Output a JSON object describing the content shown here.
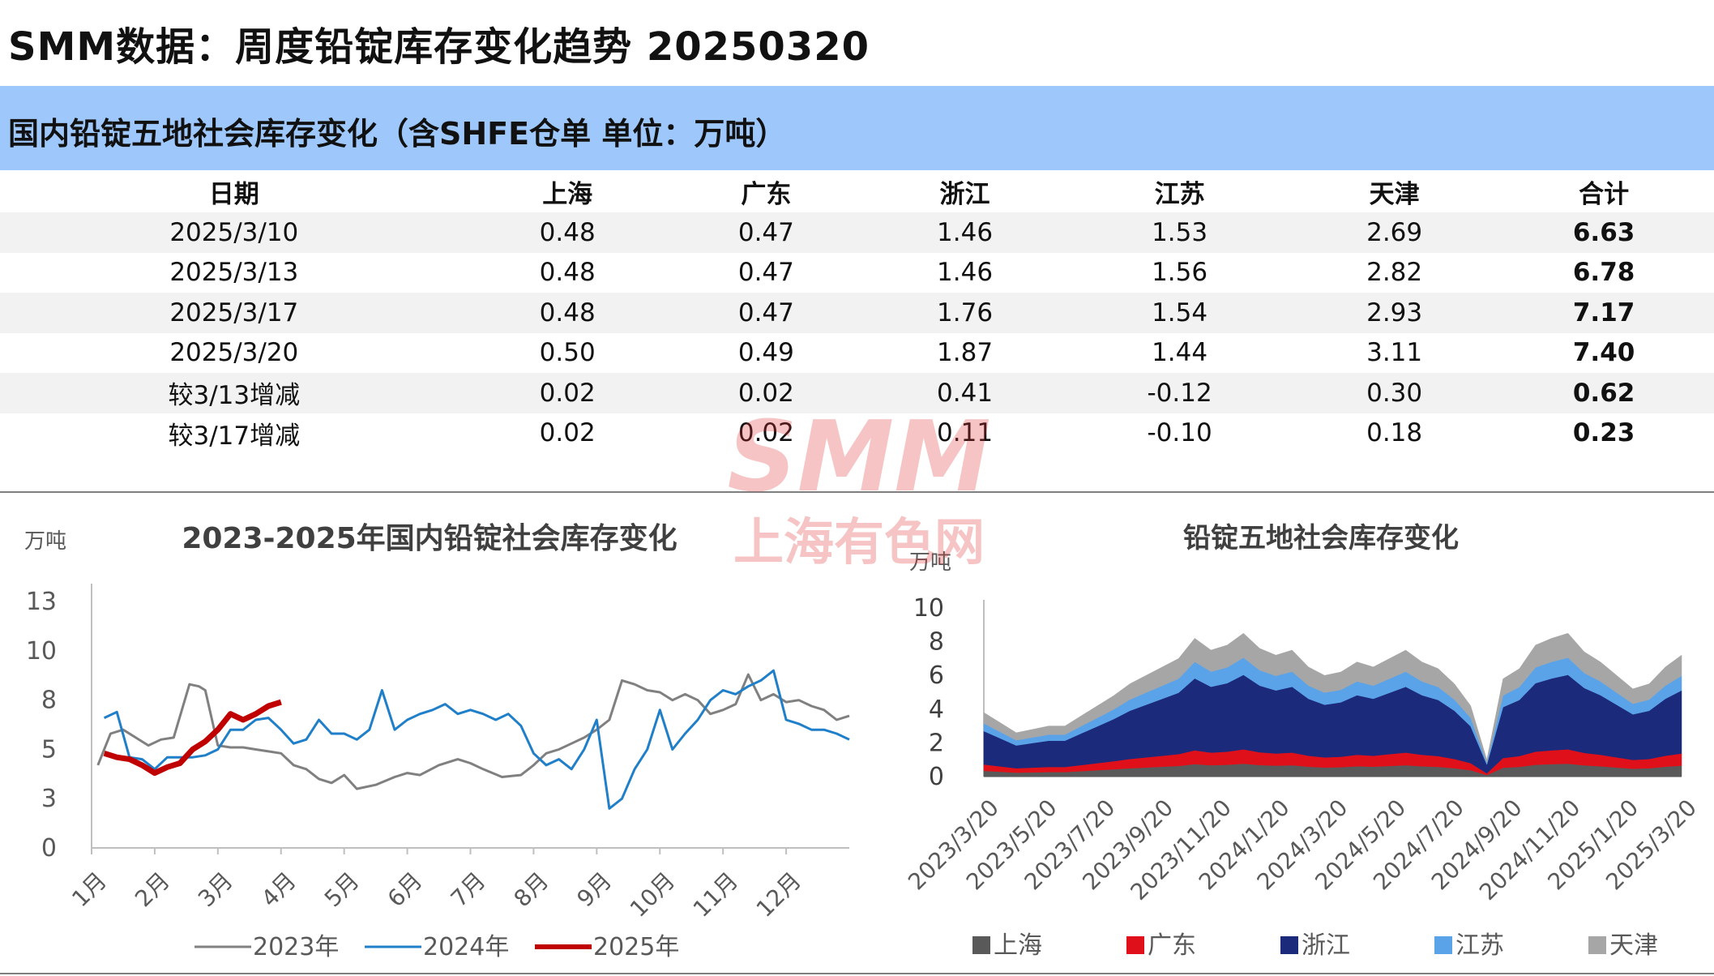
{
  "page_title": "SMM数据：周度铅锭库存变化趋势 20250320",
  "table": {
    "title": "国内铅锭五地社会库存变化（含SHFE仓单 单位：万吨）",
    "headers": [
      "日期",
      "上海",
      "广东",
      "浙江",
      "江苏",
      "天津",
      "合计"
    ],
    "rows": [
      [
        "2025/3/10",
        "0.48",
        "0.47",
        "1.46",
        "1.53",
        "2.69",
        "6.63"
      ],
      [
        "2025/3/13",
        "0.48",
        "0.47",
        "1.46",
        "1.56",
        "2.82",
        "6.78"
      ],
      [
        "2025/3/17",
        "0.48",
        "0.47",
        "1.76",
        "1.54",
        "2.93",
        "7.17"
      ],
      [
        "2025/3/20",
        "0.50",
        "0.49",
        "1.87",
        "1.44",
        "3.11",
        "7.40"
      ],
      [
        "较3/13增减",
        "0.02",
        "0.02",
        "0.41",
        "-0.12",
        "0.30",
        "0.62"
      ],
      [
        "较3/17增减",
        "0.02",
        "0.02",
        "0.11",
        "-0.10",
        "0.18",
        "0.23"
      ]
    ]
  },
  "watermark": {
    "line1": "SMM",
    "line2": "上海有色网"
  },
  "chart_data": [
    {
      "type": "line",
      "title": "2023-2025年国内铅锭社会库存变化",
      "ylabel": "万吨",
      "ylim": [
        0,
        13
      ],
      "yticks": [
        "13",
        "10",
        "8",
        "5",
        "3",
        "0"
      ],
      "ytick_values": [
        12.5,
        10,
        7.5,
        5,
        2.5,
        0
      ],
      "xlim": [
        1,
        13
      ],
      "xticks": [
        "1月",
        "2月",
        "3月",
        "4月",
        "5月",
        "6月",
        "7月",
        "8月",
        "9月",
        "10月",
        "11月",
        "12月"
      ],
      "series": [
        {
          "name": "2023年",
          "color": "#808080",
          "x": [
            1.1,
            1.3,
            1.5,
            1.7,
            1.9,
            2.1,
            2.3,
            2.55,
            2.7,
            2.8,
            3.0,
            3.2,
            3.4,
            3.6,
            3.8,
            4.0,
            4.2,
            4.4,
            4.6,
            4.8,
            5.0,
            5.2,
            5.5,
            5.8,
            6.0,
            6.2,
            6.5,
            6.8,
            7.0,
            7.2,
            7.5,
            7.8,
            8.0,
            8.2,
            8.4,
            8.6,
            8.8,
            9.0,
            9.2,
            9.4,
            9.6,
            9.8,
            10.0,
            10.2,
            10.4,
            10.6,
            10.8,
            11.0,
            11.2,
            11.4,
            11.6,
            11.8,
            12.0,
            12.2,
            12.4,
            12.6,
            12.8,
            13.0
          ],
          "y": [
            4.2,
            5.8,
            6.0,
            5.6,
            5.2,
            5.5,
            5.6,
            8.3,
            8.2,
            8.0,
            5.2,
            5.1,
            5.1,
            5.0,
            4.9,
            4.8,
            4.2,
            4.0,
            3.5,
            3.3,
            3.7,
            3.0,
            3.2,
            3.6,
            3.8,
            3.7,
            4.2,
            4.5,
            4.3,
            4.0,
            3.6,
            3.7,
            4.2,
            4.8,
            5.0,
            5.3,
            5.6,
            6.0,
            6.5,
            8.5,
            8.3,
            8.0,
            7.9,
            7.5,
            7.8,
            7.5,
            6.8,
            7.0,
            7.3,
            8.8,
            7.5,
            7.8,
            7.4,
            7.5,
            7.2,
            7.0,
            6.5,
            6.7
          ]
        },
        {
          "name": "2024年",
          "color": "#1f7fc8",
          "x": [
            1.2,
            1.4,
            1.6,
            1.8,
            2.0,
            2.2,
            2.4,
            2.6,
            2.8,
            3.0,
            3.2,
            3.4,
            3.6,
            3.8,
            4.0,
            4.2,
            4.4,
            4.6,
            4.8,
            5.0,
            5.2,
            5.4,
            5.6,
            5.8,
            6.0,
            6.2,
            6.4,
            6.6,
            6.8,
            7.0,
            7.2,
            7.4,
            7.6,
            7.8,
            8.0,
            8.2,
            8.4,
            8.6,
            8.8,
            9.0,
            9.2,
            9.4,
            9.6,
            9.8,
            10.0,
            10.2,
            10.4,
            10.6,
            10.8,
            11.0,
            11.2,
            11.4,
            11.6,
            11.8,
            12.0,
            12.2,
            12.4,
            12.6,
            12.8,
            13.0
          ],
          "y": [
            6.6,
            6.9,
            4.6,
            4.5,
            4.0,
            4.6,
            4.6,
            4.6,
            4.7,
            5.0,
            6.0,
            6.0,
            6.5,
            6.6,
            6.0,
            5.3,
            5.5,
            6.5,
            5.8,
            5.8,
            5.5,
            6.0,
            8.0,
            6.0,
            6.5,
            6.8,
            7.0,
            7.3,
            6.8,
            7.0,
            6.8,
            6.5,
            6.8,
            6.2,
            4.8,
            4.2,
            4.5,
            4.0,
            5.0,
            6.5,
            2.0,
            2.5,
            4.0,
            5.0,
            7.0,
            5.0,
            5.8,
            6.5,
            7.5,
            8.0,
            7.8,
            8.2,
            8.5,
            9.0,
            6.5,
            6.3,
            6.0,
            6.0,
            5.8,
            5.5
          ]
        },
        {
          "name": "2025年",
          "color": "#c00000",
          "x": [
            1.2,
            1.4,
            1.6,
            1.8,
            2.0,
            2.2,
            2.4,
            2.6,
            2.8,
            3.0,
            3.2,
            3.4,
            3.6,
            3.8,
            4.0
          ],
          "y": [
            4.8,
            4.6,
            4.5,
            4.2,
            3.8,
            4.1,
            4.3,
            5.0,
            5.4,
            6.0,
            6.8,
            6.5,
            6.8,
            7.2,
            7.4
          ]
        }
      ],
      "legend": "bottom"
    },
    {
      "type": "area",
      "title": "铅锭五地社会库存变化",
      "ylabel": "万吨",
      "ylim": [
        0,
        10
      ],
      "yticks": [
        "10",
        "8",
        "6",
        "4",
        "2",
        "0"
      ],
      "ytick_values": [
        10,
        8,
        6,
        4,
        2,
        0
      ],
      "xticks": [
        "2023/3/20",
        "2023/5/20",
        "2023/7/20",
        "2023/9/20",
        "2023/11/20",
        "2024/1/20",
        "2024/3/20",
        "2024/5/20",
        "2024/7/20",
        "2024/9/20",
        "2024/11/20",
        "2025/1/20",
        "2025/3/20"
      ],
      "series": [
        {
          "name": "上海",
          "color": "#595959"
        },
        {
          "name": "广东",
          "color": "#e0101a"
        },
        {
          "name": "浙江",
          "color": "#1b2a7a"
        },
        {
          "name": "江苏",
          "color": "#5ba3e8"
        },
        {
          "name": "天津",
          "color": "#a6a6a6"
        }
      ],
      "totals": [
        3.8,
        3.2,
        2.6,
        2.8,
        3.0,
        3.0,
        3.6,
        4.2,
        4.8,
        5.5,
        6.0,
        6.5,
        7.0,
        8.2,
        7.5,
        7.8,
        8.5,
        7.6,
        7.2,
        7.5,
        6.5,
        6.0,
        6.2,
        6.8,
        6.5,
        7.0,
        7.5,
        6.8,
        6.4,
        5.5,
        4.2,
        1.0,
        5.8,
        6.4,
        7.8,
        8.2,
        8.5,
        7.4,
        6.8,
        6.0,
        5.2,
        5.5,
        6.5,
        7.2
      ],
      "shares": [
        0.09,
        0.1,
        0.52,
        0.12,
        0.17
      ],
      "legend": "bottom"
    }
  ]
}
